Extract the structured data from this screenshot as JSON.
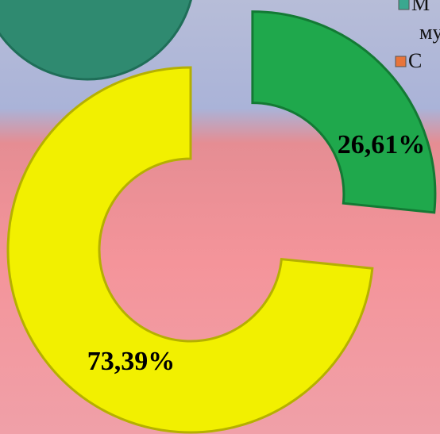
{
  "chart_data": {
    "type": "donut",
    "values": [
      26.61,
      73.39
    ],
    "value_labels": [
      "26,61%",
      "73,39%"
    ],
    "colors": [
      "#1fa84c",
      "#f2f000"
    ],
    "legend": {
      "entries": [
        {
          "lines": [
            "М",
            "му"
          ],
          "color": "#3aa88f"
        },
        {
          "lines": [
            "С"
          ],
          "color": "#e8743b"
        }
      ]
    }
  }
}
